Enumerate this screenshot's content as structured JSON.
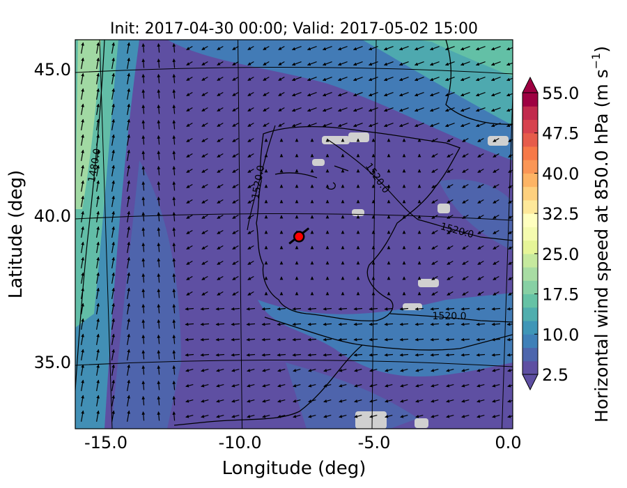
{
  "chart_data": {
    "type": "heatmap",
    "title": "Init: 2017-04-30 00:00; Valid: 2017-05-02 15:00",
    "xlabel": "Longitude (deg)",
    "ylabel": "Latitude (deg)",
    "xlim": [
      -16.0,
      0.3
    ],
    "ylim": [
      32.8,
      46.2
    ],
    "x_ticks": [
      -15.0,
      -10.0,
      -5.0,
      0.0
    ],
    "x_tick_labels": [
      "-15.0",
      "-10.0",
      "-5.0",
      "0.0"
    ],
    "y_ticks": [
      35.0,
      40.0,
      45.0
    ],
    "y_tick_labels": [
      "35.0",
      "40.0",
      "45.0"
    ],
    "colorbar": {
      "label": "Horizontal wind speed at 850.0 hPa (m s$^{-1}$)",
      "label_main": "Horizontal wind speed at 850.0 hPa (m s",
      "label_sup": "−1",
      "label_close": ")",
      "min": 2.5,
      "max": 55.0,
      "levels": [
        2.5,
        5.0,
        7.5,
        10.0,
        12.5,
        15.0,
        17.5,
        20.0,
        22.5,
        25.0,
        27.5,
        30.0,
        32.5,
        35.0,
        37.5,
        40.0,
        42.5,
        45.0,
        47.5,
        50.0,
        52.5,
        55.0
      ],
      "tick_values": [
        2.5,
        10.0,
        17.5,
        25.0,
        32.5,
        40.0,
        47.5,
        55.0
      ],
      "tick_labels": [
        "2.5",
        "10.0",
        "17.5",
        "25.0",
        "32.5",
        "40.0",
        "47.5",
        "55.0"
      ],
      "colors": [
        "#5e4fa2",
        "#4d66ad",
        "#3f80b8",
        "#3f96b7",
        "#50aeae",
        "#66c2a5",
        "#87d0a4",
        "#a8dca3",
        "#c6e99e",
        "#e6f598",
        "#f5fbaf",
        "#ffffbf",
        "#fee89a",
        "#fed07e",
        "#fdb465",
        "#fa9656",
        "#f67948",
        "#e65c4b",
        "#d7434f",
        "#c12a4d",
        "#9e0142"
      ],
      "extend": "both"
    },
    "contours": [
      {
        "label": "1480.0"
      },
      {
        "label": "1520.0"
      },
      {
        "label": "1520.0"
      },
      {
        "label": "1520.0"
      },
      {
        "label": "1520.0"
      }
    ],
    "marker": {
      "type": "point",
      "lon": -7.8,
      "lat": 39.3,
      "color": "#ff0000"
    },
    "wind_field": "arrows"
  }
}
